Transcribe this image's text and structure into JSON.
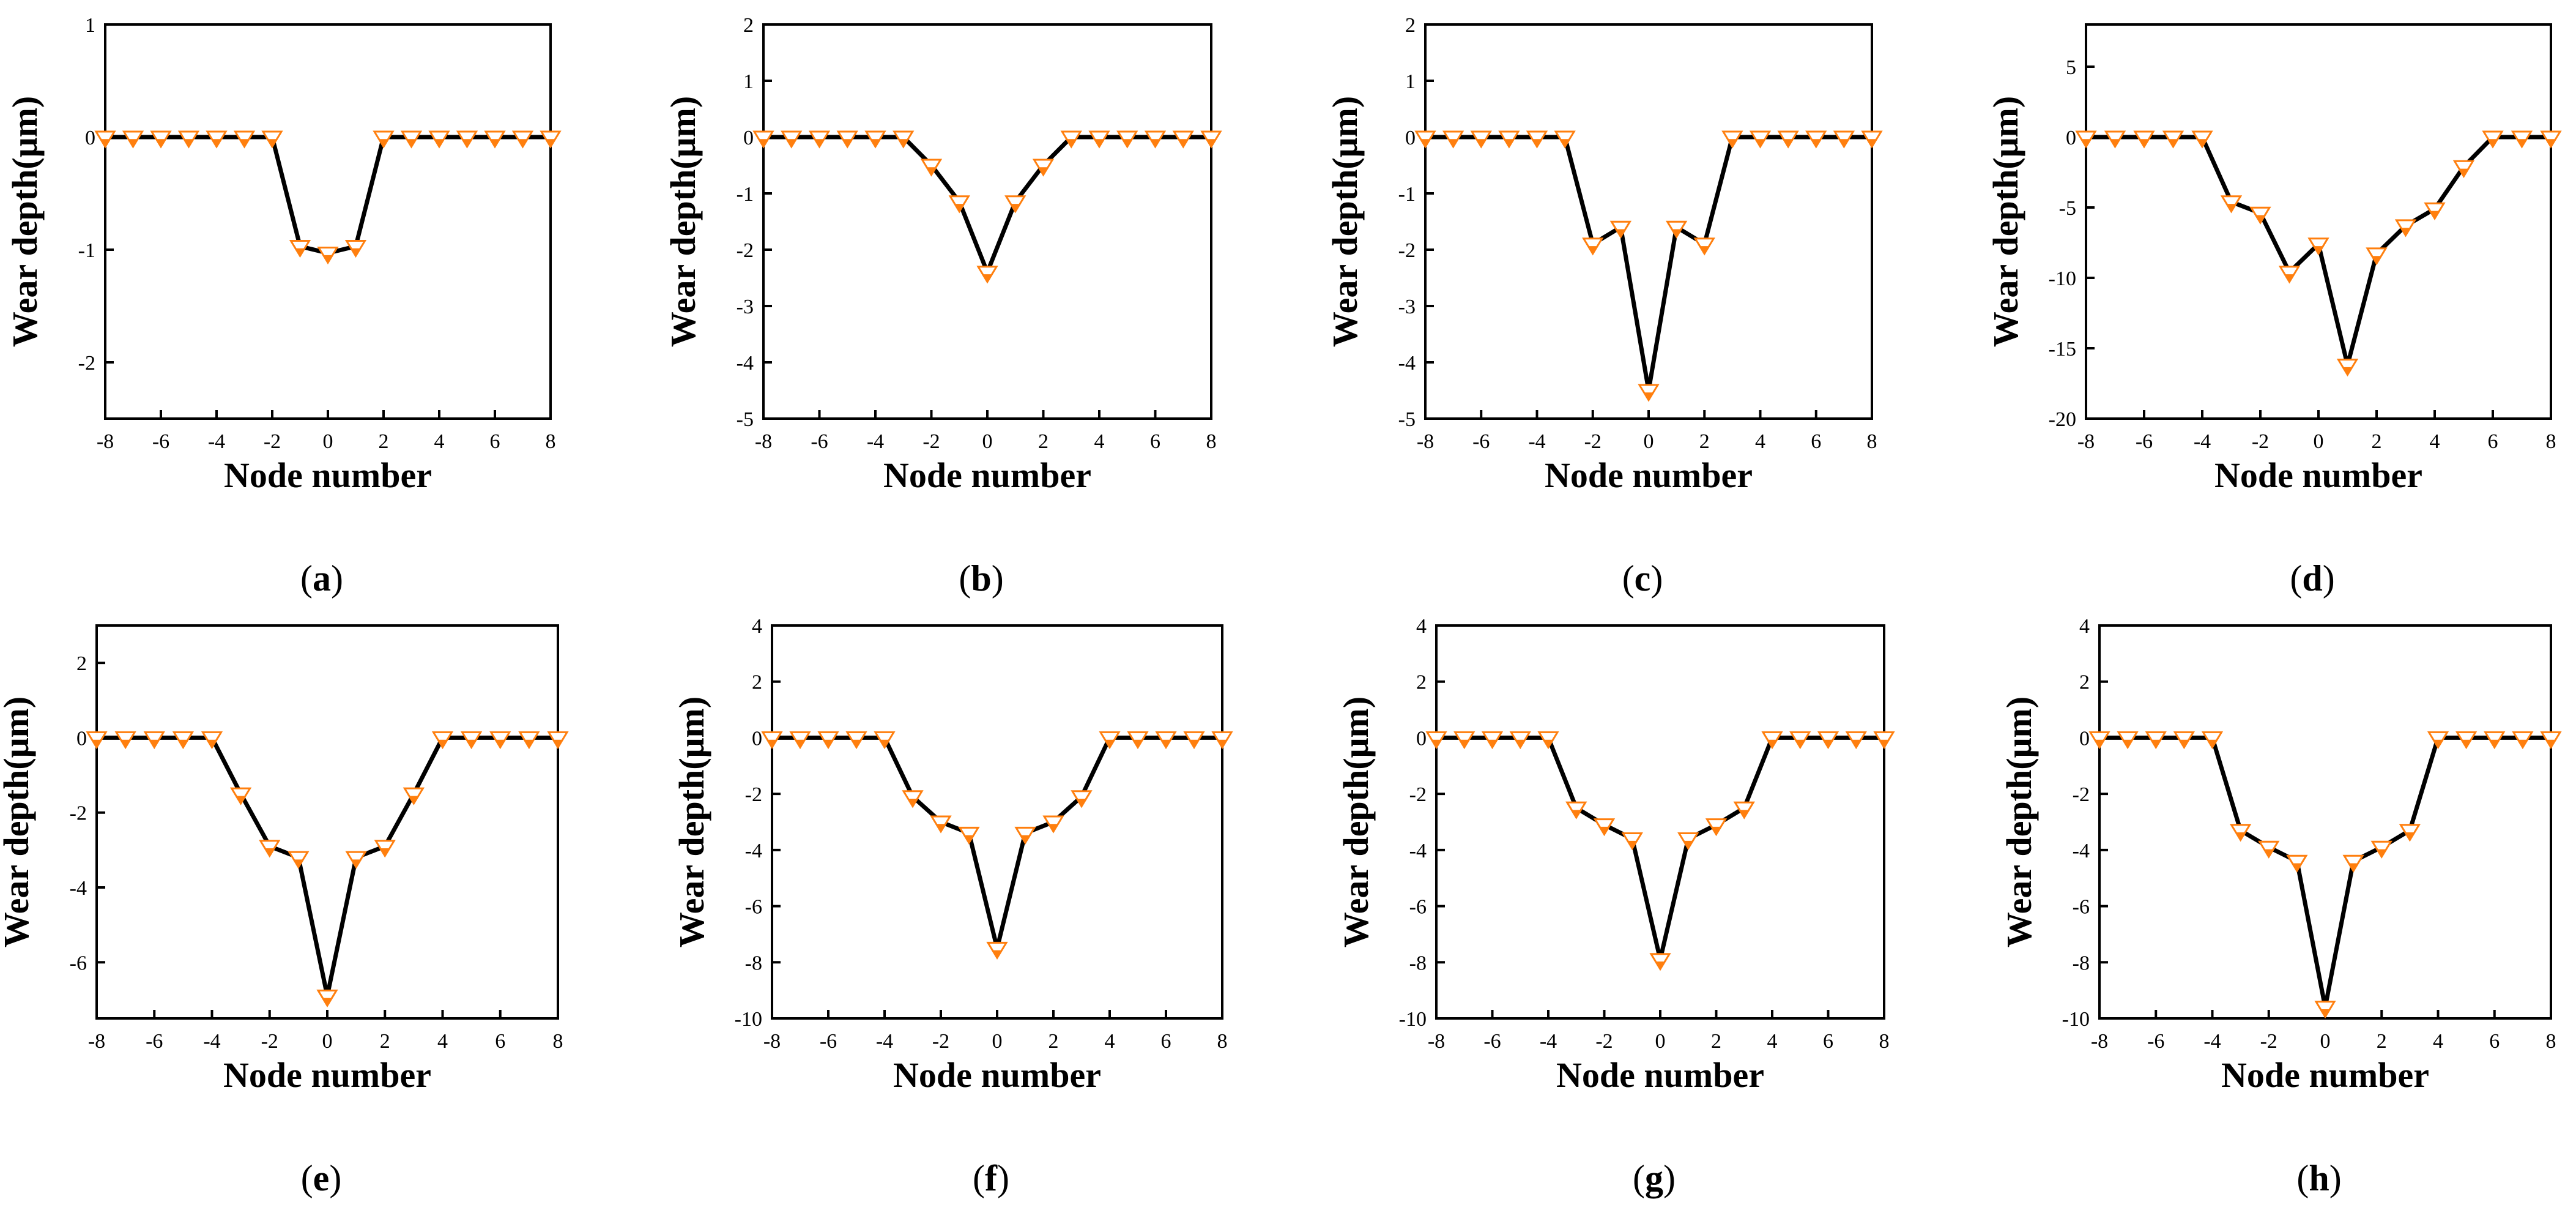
{
  "chart_data": [
    {
      "caption": "a",
      "type": "line",
      "title": "",
      "xlabel": "Node number",
      "ylabel": "Wear depth(μm)",
      "xlim": [
        -8,
        8
      ],
      "ylim": [
        -2.5,
        1
      ],
      "xticks": [
        -8,
        -6,
        -4,
        -2,
        0,
        2,
        4,
        6,
        8
      ],
      "yticks": [
        1,
        0,
        -1,
        -2
      ],
      "x": [
        -8,
        -7,
        -6,
        -5,
        -4,
        -3,
        -2,
        -1,
        0,
        1,
        2,
        3,
        4,
        5,
        6,
        7,
        8
      ],
      "y": [
        0,
        0,
        0,
        0,
        0,
        0,
        0,
        -0.97,
        -1.03,
        -0.97,
        0,
        0,
        0,
        0,
        0,
        0,
        0
      ]
    },
    {
      "caption": "b",
      "type": "line",
      "title": "",
      "xlabel": "Node number",
      "ylabel": "Wear depth(μm)",
      "xlim": [
        -8,
        8
      ],
      "ylim": [
        -5,
        2
      ],
      "xticks": [
        -8,
        -6,
        -4,
        -2,
        0,
        2,
        4,
        6,
        8
      ],
      "yticks": [
        2,
        1,
        0,
        -1,
        -2,
        -3,
        -4,
        -5
      ],
      "x": [
        -8,
        -7,
        -6,
        -5,
        -4,
        -3,
        -2,
        -1,
        0,
        1,
        2,
        3,
        4,
        5,
        6,
        7,
        8
      ],
      "y": [
        0,
        0,
        0,
        0,
        0,
        0,
        -0.5,
        -1.15,
        -2.4,
        -1.15,
        -0.5,
        0,
        0,
        0,
        0,
        0,
        0
      ]
    },
    {
      "caption": "c",
      "type": "line",
      "title": "",
      "xlabel": "Node number",
      "ylabel": "Wear depth(μm)",
      "xlim": [
        -8,
        8
      ],
      "ylim": [
        -5,
        2
      ],
      "xticks": [
        -8,
        -6,
        -4,
        -2,
        0,
        2,
        4,
        6,
        8
      ],
      "yticks": [
        2,
        1,
        0,
        -1,
        -2,
        -3,
        -4,
        -5
      ],
      "x": [
        -8,
        -7,
        -6,
        -5,
        -4,
        -3,
        -2,
        -1,
        0,
        1,
        2,
        3,
        4,
        5,
        6,
        7,
        8
      ],
      "y": [
        0,
        0,
        0,
        0,
        0,
        0,
        -1.9,
        -1.6,
        -4.5,
        -1.6,
        -1.9,
        0,
        0,
        0,
        0,
        0,
        0
      ]
    },
    {
      "caption": "d",
      "type": "line",
      "title": "",
      "xlabel": "Node number",
      "ylabel": "Wear depth(μm)",
      "xlim": [
        -8,
        8
      ],
      "ylim": [
        -20,
        8
      ],
      "xticks": [
        -8,
        -6,
        -4,
        -2,
        0,
        2,
        4,
        6,
        8
      ],
      "yticks": [
        5,
        0,
        -5,
        -10,
        -15,
        -20
      ],
      "x": [
        -8,
        -7,
        -6,
        -5,
        -4,
        -3,
        -2,
        -1,
        0,
        1,
        2,
        3,
        4,
        5,
        6,
        7,
        8
      ],
      "y": [
        0,
        0,
        0,
        0,
        0,
        -4.6,
        -5.4,
        -9.6,
        -7.6,
        -16.2,
        -8.3,
        -6.3,
        -5.1,
        -2.1,
        0,
        0,
        0
      ]
    },
    {
      "caption": "e",
      "type": "line",
      "title": "",
      "xlabel": "Node number",
      "ylabel": "Wear depth(μm)",
      "xlim": [
        -8,
        8
      ],
      "ylim": [
        -7.5,
        3
      ],
      "xticks": [
        -8,
        -6,
        -4,
        -2,
        0,
        2,
        4,
        6,
        8
      ],
      "yticks": [
        2,
        0,
        -2,
        -4,
        -6
      ],
      "x": [
        -8,
        -7,
        -6,
        -5,
        -4,
        -3,
        -2,
        -1,
        0,
        1,
        2,
        3,
        4,
        5,
        6,
        7,
        8
      ],
      "y": [
        0,
        0,
        0,
        0,
        0,
        -1.5,
        -2.9,
        -3.2,
        -6.9,
        -3.2,
        -2.9,
        -1.5,
        0,
        0,
        0,
        0,
        0
      ]
    },
    {
      "caption": "f",
      "type": "line",
      "title": "",
      "xlabel": "Node number",
      "ylabel": "Wear depth(μm)",
      "xlim": [
        -8,
        8
      ],
      "ylim": [
        -10,
        4
      ],
      "xticks": [
        -8,
        -6,
        -4,
        -2,
        0,
        2,
        4,
        6,
        8
      ],
      "yticks": [
        4,
        2,
        0,
        -2,
        -4,
        -6,
        -8,
        -10
      ],
      "x": [
        -8,
        -7,
        -6,
        -5,
        -4,
        -3,
        -2,
        -1,
        0,
        1,
        2,
        3,
        4,
        5,
        6,
        7,
        8
      ],
      "y": [
        0,
        0,
        0,
        0,
        0,
        -2.1,
        -3.0,
        -3.4,
        -7.5,
        -3.4,
        -3.0,
        -2.1,
        0,
        0,
        0,
        0,
        0
      ]
    },
    {
      "caption": "g",
      "type": "line",
      "title": "",
      "xlabel": "Node number",
      "ylabel": "Wear depth(μm)",
      "xlim": [
        -8,
        8
      ],
      "ylim": [
        -10,
        4
      ],
      "xticks": [
        -8,
        -6,
        -4,
        -2,
        0,
        2,
        4,
        6,
        8
      ],
      "yticks": [
        4,
        2,
        0,
        -2,
        -4,
        -6,
        -8,
        -10
      ],
      "x": [
        -8,
        -7,
        -6,
        -5,
        -4,
        -3,
        -2,
        -1,
        0,
        1,
        2,
        3,
        4,
        5,
        6,
        7,
        8
      ],
      "y": [
        0,
        0,
        0,
        0,
        0,
        -2.5,
        -3.1,
        -3.6,
        -7.9,
        -3.6,
        -3.1,
        -2.5,
        0,
        0,
        0,
        0,
        0
      ]
    },
    {
      "caption": "h",
      "type": "line",
      "title": "",
      "xlabel": "Node number",
      "ylabel": "Wear depth(μm)",
      "xlim": [
        -8,
        8
      ],
      "ylim": [
        -10,
        4
      ],
      "xticks": [
        -8,
        -6,
        -4,
        -2,
        0,
        2,
        4,
        6,
        8
      ],
      "yticks": [
        4,
        2,
        0,
        -2,
        -4,
        -6,
        -8,
        -10
      ],
      "x": [
        -8,
        -7,
        -6,
        -5,
        -4,
        -3,
        -2,
        -1,
        0,
        1,
        2,
        3,
        4,
        5,
        6,
        7,
        8
      ],
      "y": [
        0,
        0,
        0,
        0,
        0,
        -3.3,
        -3.9,
        -4.4,
        -9.6,
        -4.4,
        -3.9,
        -3.3,
        0,
        0,
        0,
        0,
        0
      ]
    }
  ],
  "colors": {
    "marker": "#ff7f0e",
    "line": "#000000",
    "axis": "#000000"
  }
}
